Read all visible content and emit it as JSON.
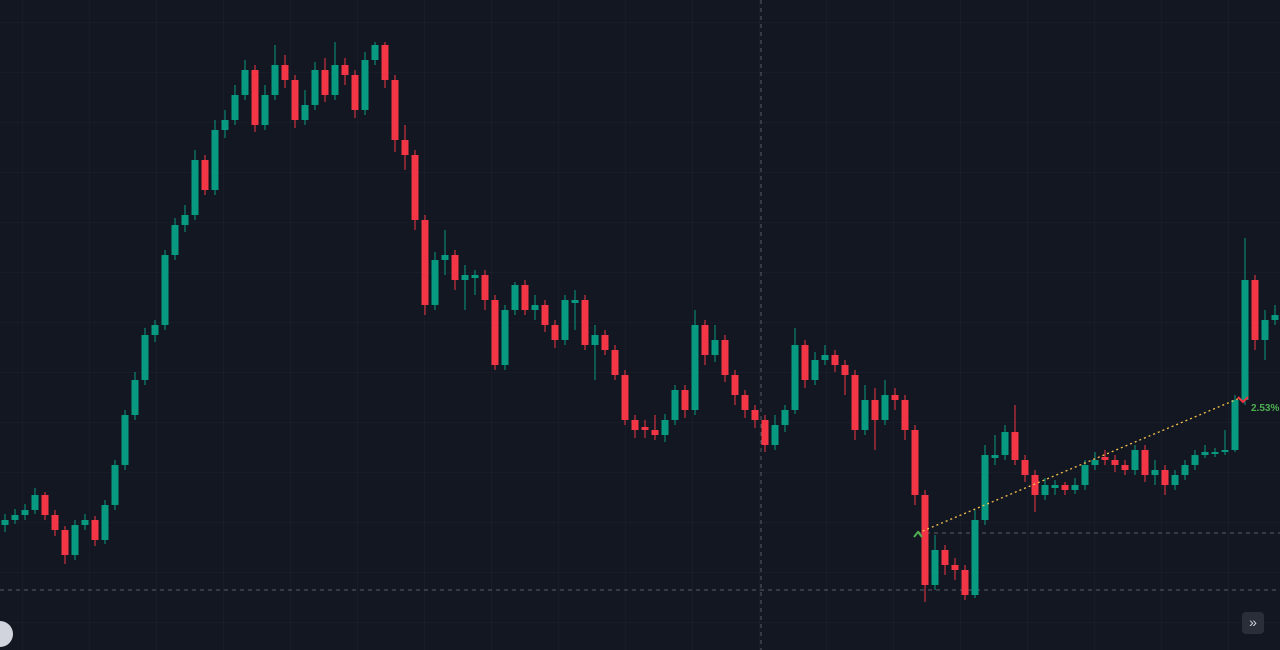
{
  "chart_data": {
    "type": "candlestick",
    "annotation": "2.53%",
    "up_color": "#089981",
    "down_color": "#f23645",
    "ylim": [
      0,
      650
    ],
    "open": [
      125,
      130,
      135,
      140,
      155,
      135,
      120,
      95,
      125,
      130,
      110,
      145,
      185,
      235,
      270,
      315,
      325,
      395,
      425,
      435,
      490,
      460,
      520,
      530,
      555,
      580,
      525,
      555,
      585,
      570,
      530,
      545,
      580,
      555,
      585,
      575,
      540,
      590,
      605,
      570,
      510,
      495,
      430,
      345,
      390,
      395,
      370,
      372,
      375,
      350,
      285,
      340,
      365,
      340,
      345,
      325,
      310,
      347,
      350,
      305,
      315,
      300,
      275,
      230,
      223,
      220,
      215,
      230,
      260,
      240,
      325,
      295,
      310,
      275,
      255,
      240,
      230,
      205,
      225,
      240,
      305,
      270,
      290,
      295,
      285,
      275,
      220,
      250,
      230,
      255,
      250,
      220,
      155,
      65,
      100,
      85,
      80,
      55,
      130,
      192,
      195,
      218,
      190,
      175,
      155,
      162,
      165,
      160,
      165,
      185,
      193,
      190,
      185,
      180,
      200,
      175,
      180,
      165,
      175,
      185,
      195,
      196,
      198,
      200,
      250,
      370,
      310,
      330
    ],
    "high": [
      136,
      141,
      146,
      162,
      158,
      140,
      124,
      130,
      136,
      134,
      150,
      190,
      240,
      278,
      322,
      330,
      400,
      432,
      445,
      500,
      495,
      530,
      540,
      565,
      590,
      585,
      565,
      605,
      595,
      575,
      560,
      588,
      592,
      608,
      592,
      580,
      598,
      608,
      608,
      575,
      525,
      500,
      435,
      398,
      420,
      400,
      385,
      380,
      380,
      355,
      345,
      368,
      370,
      355,
      350,
      330,
      355,
      360,
      355,
      325,
      320,
      305,
      280,
      235,
      230,
      235,
      236,
      265,
      265,
      340,
      330,
      325,
      315,
      280,
      260,
      245,
      235,
      235,
      245,
      322,
      310,
      298,
      305,
      300,
      290,
      280,
      265,
      262,
      270,
      262,
      255,
      225,
      160,
      115,
      105,
      92,
      85,
      140,
      205,
      215,
      225,
      245,
      195,
      180,
      172,
      170,
      168,
      172,
      190,
      198,
      200,
      195,
      190,
      205,
      205,
      190,
      185,
      180,
      190,
      200,
      205,
      202,
      220,
      255,
      412,
      375,
      340,
      345
    ],
    "low": [
      118,
      126,
      130,
      136,
      130,
      114,
      86,
      90,
      120,
      104,
      106,
      140,
      180,
      230,
      265,
      308,
      320,
      390,
      418,
      430,
      455,
      455,
      512,
      525,
      550,
      518,
      520,
      550,
      562,
      522,
      525,
      540,
      548,
      550,
      565,
      532,
      535,
      585,
      562,
      498,
      480,
      420,
      335,
      340,
      375,
      360,
      340,
      355,
      340,
      280,
      280,
      335,
      335,
      330,
      318,
      302,
      305,
      320,
      300,
      270,
      295,
      270,
      225,
      212,
      212,
      210,
      208,
      225,
      232,
      235,
      285,
      288,
      268,
      245,
      232,
      222,
      198,
      200,
      218,
      236,
      262,
      265,
      285,
      278,
      255,
      210,
      215,
      200,
      225,
      240,
      210,
      145,
      48,
      60,
      75,
      70,
      50,
      52,
      125,
      185,
      190,
      185,
      168,
      138,
      150,
      155,
      155,
      156,
      160,
      180,
      185,
      178,
      175,
      175,
      168,
      165,
      155,
      160,
      170,
      180,
      192,
      193,
      195,
      198,
      245,
      300,
      290,
      325
    ],
    "close": [
      130,
      135,
      140,
      155,
      135,
      120,
      95,
      125,
      130,
      110,
      145,
      185,
      235,
      270,
      315,
      325,
      395,
      425,
      435,
      490,
      460,
      520,
      530,
      555,
      580,
      525,
      555,
      585,
      570,
      530,
      545,
      580,
      555,
      585,
      575,
      540,
      590,
      605,
      570,
      510,
      495,
      430,
      345,
      390,
      395,
      370,
      375,
      375,
      350,
      285,
      340,
      365,
      340,
      345,
      325,
      310,
      350,
      350,
      305,
      315,
      300,
      275,
      230,
      220,
      220,
      215,
      230,
      260,
      240,
      325,
      295,
      310,
      275,
      255,
      240,
      230,
      205,
      225,
      240,
      305,
      270,
      290,
      295,
      285,
      275,
      220,
      250,
      230,
      255,
      250,
      220,
      155,
      65,
      100,
      85,
      80,
      55,
      130,
      195,
      195,
      218,
      190,
      175,
      155,
      165,
      165,
      160,
      165,
      185,
      190,
      190,
      185,
      180,
      200,
      175,
      180,
      165,
      175,
      185,
      195,
      198,
      198,
      200,
      250,
      370,
      310,
      330,
      335
    ]
  }
}
